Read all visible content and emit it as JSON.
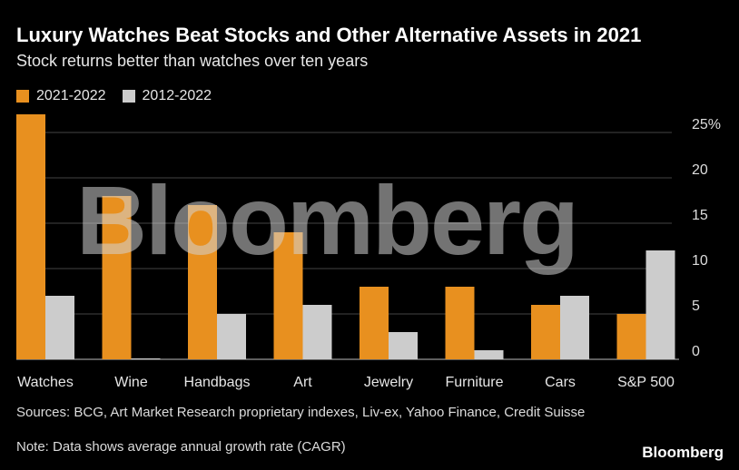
{
  "header": {
    "title": "Luxury Watches Beat Stocks and Other Alternative Assets in 2021",
    "subtitle": "Stock returns better than watches over ten years"
  },
  "colors": {
    "series_a": "#E8901F",
    "series_b": "#CCCCCC",
    "grid": "#444444",
    "axis": "#BBBBBB"
  },
  "chart_data": {
    "type": "bar",
    "title": "Luxury Watches Beat Stocks and Other Alternative Assets in 2021",
    "subtitle": "Stock returns better than watches over ten years",
    "categories": [
      "Watches",
      "Wine",
      "Handbags",
      "Art",
      "Jewelry",
      "Furniture",
      "Cars",
      "S&P 500"
    ],
    "series": [
      {
        "name": "2021-2022",
        "values": [
          27,
          18,
          17,
          14,
          8,
          8,
          6,
          5
        ]
      },
      {
        "name": "2012-2022",
        "values": [
          7,
          0.1,
          5,
          6,
          3,
          1,
          7,
          12
        ]
      }
    ],
    "y_ticks": [
      "0",
      "5",
      "10",
      "15",
      "20",
      "25%"
    ],
    "ylim": [
      0,
      27
    ],
    "grid": true,
    "legend_position": "top-left",
    "y_axis_side": "right"
  },
  "footer": {
    "sources": "Sources: BCG, Art Market Research proprietary indexes, Liv-ex, Yahoo Finance, Credit Suisse",
    "note": "Note: Data shows average annual growth rate (CAGR)",
    "brand": "Bloomberg"
  },
  "watermark": "Bloomberg"
}
